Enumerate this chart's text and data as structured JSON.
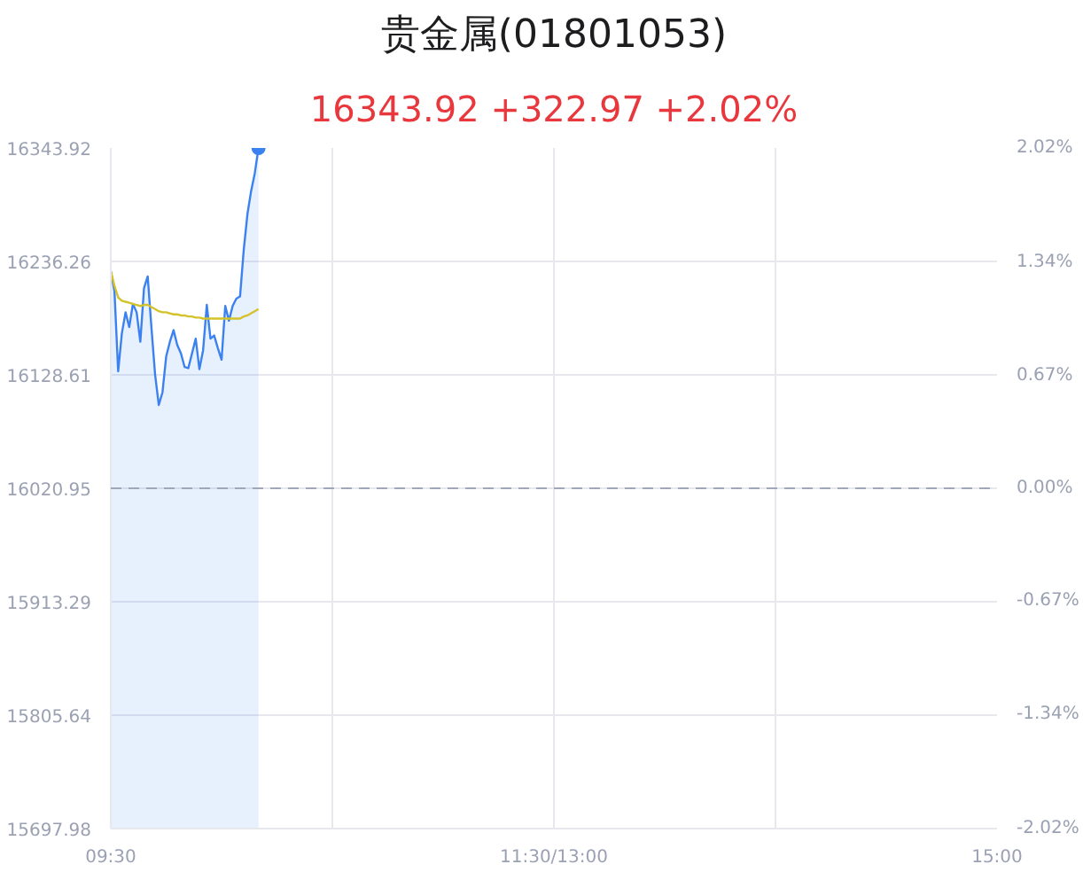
{
  "chart_data": {
    "type": "area",
    "title": "贵金属(01801053)",
    "subtitle": "16343.92 +322.97 +2.02%",
    "categories": [
      "09:30",
      null,
      null,
      null,
      null,
      null,
      null,
      null,
      null,
      null,
      null,
      null,
      null,
      null,
      null,
      null,
      null,
      null,
      null,
      null,
      null,
      null,
      null,
      null,
      null,
      null,
      null,
      null,
      null,
      null,
      null,
      null,
      null,
      null,
      null,
      null,
      null,
      null,
      null,
      null,
      null,
      null,
      null,
      null,
      null,
      null,
      null,
      null,
      null,
      null,
      null,
      null,
      null,
      null,
      null,
      null,
      null,
      null,
      null,
      null,
      null,
      null,
      null,
      null,
      null,
      null,
      null,
      null,
      null,
      null,
      null,
      null,
      null,
      null,
      null,
      null,
      null,
      null,
      null,
      null,
      null,
      null,
      null,
      null,
      null,
      null,
      null,
      null,
      null,
      null,
      null,
      null,
      null,
      null,
      null,
      null,
      null,
      null,
      null,
      null,
      null,
      null,
      null,
      null,
      null,
      null,
      null,
      null,
      null,
      null,
      null,
      null,
      null,
      null,
      null,
      null,
      null,
      null,
      null,
      null,
      "11:30/13:00",
      null,
      null,
      null,
      null,
      null,
      null,
      null,
      null,
      null,
      null,
      null,
      null,
      null,
      null,
      null,
      null,
      null,
      null,
      null,
      null,
      null,
      null,
      null,
      null,
      null,
      null,
      null,
      null,
      null,
      null,
      null,
      null,
      null,
      null,
      null,
      null,
      null,
      null,
      null,
      null,
      null,
      null,
      null,
      null,
      null,
      null,
      null,
      null,
      null,
      null,
      null,
      null,
      null,
      null,
      null,
      null,
      null,
      null,
      null,
      null,
      null,
      null,
      null,
      null,
      null,
      null,
      null,
      null,
      null,
      null,
      null,
      null,
      null,
      null,
      null,
      null,
      null,
      null,
      null,
      null,
      null,
      null,
      null,
      null,
      null,
      null,
      null,
      null,
      null,
      null,
      null,
      null,
      null,
      null,
      null,
      null,
      null,
      null,
      null,
      null,
      null,
      null,
      null,
      null,
      null,
      null,
      null,
      null,
      null,
      null,
      null,
      null,
      null,
      null,
      null,
      null,
      null,
      null,
      null,
      "15:00"
    ],
    "ylim": [
      15697.98,
      16343.92
    ],
    "yticks": [
      15697.98,
      15805.64,
      15913.29,
      16020.95,
      16128.61,
      16236.26,
      16343.92
    ],
    "y2lim": [
      -2.02,
      2.02
    ],
    "y2ticks": [
      {
        "value": -2.02,
        "label": "-2.02%"
      },
      {
        "value": -1.34,
        "label": "-1.34%"
      },
      {
        "value": -0.67,
        "label": "-0.67%"
      },
      {
        "value": 0,
        "label": "0.00%"
      },
      {
        "value": 0.67,
        "label": "0.67%"
      },
      {
        "value": 1.34,
        "label": "1.34%"
      },
      {
        "value": 2.02,
        "label": "2.02%"
      }
    ],
    "grid": true,
    "ref_lines": [
      {
        "axis": "y",
        "value": 16020.95,
        "color": "#a0a7b8",
        "line_style": "dashed"
      }
    ],
    "series": [
      {
        "color": "#3b82f0",
        "values": [
          16227,
          16208,
          16132,
          16168,
          16188,
          16174,
          16196,
          16188,
          16160,
          16211,
          16222,
          16174,
          16129,
          16100,
          16112,
          16146,
          16160,
          16171,
          16157,
          16149,
          16136,
          16135,
          16149,
          16163,
          16134,
          16152,
          16195,
          16163,
          16166,
          16154,
          16143,
          16194,
          16180,
          16194,
          16201,
          16203,
          16247,
          16281,
          16303,
          16320,
          16343.92,
          null,
          null,
          null,
          null,
          null,
          null,
          null,
          null,
          null,
          null,
          null,
          null,
          null,
          null,
          null,
          null,
          null,
          null,
          null,
          null,
          null,
          null,
          null,
          null,
          null,
          null,
          null,
          null,
          null,
          null,
          null,
          null,
          null,
          null,
          null,
          null,
          null,
          null,
          null,
          null,
          null,
          null,
          null,
          null,
          null,
          null,
          null,
          null,
          null,
          null,
          null,
          null,
          null,
          null,
          null,
          null,
          null,
          null,
          null,
          null,
          null,
          null,
          null,
          null,
          null,
          null,
          null,
          null,
          null,
          null,
          null,
          null,
          null,
          null,
          null,
          null,
          null,
          null,
          null,
          null,
          null,
          null,
          null,
          null,
          null,
          null,
          null,
          null,
          null,
          null,
          null,
          null,
          null,
          null,
          null,
          null,
          null,
          null,
          null,
          null,
          null,
          null,
          null,
          null,
          null,
          null,
          null,
          null,
          null,
          null,
          null,
          null,
          null,
          null,
          null,
          null,
          null,
          null,
          null,
          null,
          null,
          null,
          null,
          null,
          null,
          null,
          null,
          null,
          null,
          null,
          null,
          null,
          null,
          null,
          null,
          null,
          null,
          null,
          null,
          null,
          null,
          null,
          null,
          null,
          null,
          null,
          null,
          null,
          null,
          null,
          null,
          null,
          null,
          null,
          null,
          null,
          null,
          null,
          null,
          null,
          null,
          null,
          null,
          null,
          null,
          null,
          null,
          null,
          null,
          null,
          null,
          null,
          null,
          null,
          null,
          null,
          null,
          null,
          null,
          null,
          null,
          null,
          null,
          null,
          null,
          null,
          null,
          null,
          null,
          null,
          null,
          null,
          null,
          null,
          null,
          null,
          null,
          null,
          null,
          null
        ]
      },
      {
        "type": "line",
        "color": "#d4c22a",
        "values": [
          16227,
          16213,
          16202,
          16199,
          16198,
          16197,
          16196,
          16195,
          16194,
          16195,
          16195,
          16193,
          16191,
          16189,
          16188,
          16188,
          16187,
          16186,
          16186,
          16185,
          16185,
          16184,
          16184,
          16183,
          16183,
          16182,
          16182,
          16182,
          16182,
          16182,
          16182,
          16182,
          16182,
          16182,
          16182,
          16182,
          16184,
          16185,
          16187,
          16189,
          16191,
          null,
          null,
          null,
          null,
          null,
          null,
          null,
          null,
          null,
          null,
          null,
          null,
          null,
          null,
          null,
          null,
          null,
          null,
          null,
          null,
          null,
          null,
          null,
          null,
          null,
          null,
          null,
          null,
          null,
          null,
          null,
          null,
          null,
          null,
          null,
          null,
          null,
          null,
          null,
          null,
          null,
          null,
          null,
          null,
          null,
          null,
          null,
          null,
          null,
          null,
          null,
          null,
          null,
          null,
          null,
          null,
          null,
          null,
          null,
          null,
          null,
          null,
          null,
          null,
          null,
          null,
          null,
          null,
          null,
          null,
          null,
          null,
          null,
          null,
          null,
          null,
          null,
          null,
          null,
          null,
          null,
          null,
          null,
          null,
          null,
          null,
          null,
          null,
          null,
          null,
          null,
          null,
          null,
          null,
          null,
          null,
          null,
          null,
          null,
          null,
          null,
          null,
          null,
          null,
          null,
          null,
          null,
          null,
          null,
          null,
          null,
          null,
          null,
          null,
          null,
          null,
          null,
          null,
          null,
          null,
          null,
          null,
          null,
          null,
          null,
          null,
          null,
          null,
          null,
          null,
          null,
          null,
          null,
          null,
          null,
          null,
          null,
          null,
          null,
          null,
          null,
          null,
          null,
          null,
          null,
          null,
          null,
          null,
          null,
          null,
          null,
          null,
          null,
          null,
          null,
          null,
          null,
          null,
          null,
          null,
          null,
          null,
          null,
          null,
          null,
          null,
          null,
          null,
          null,
          null,
          null,
          null,
          null,
          null,
          null,
          null,
          null,
          null,
          null,
          null,
          null,
          null,
          null,
          null,
          null,
          null,
          null,
          null,
          null,
          null,
          null,
          null,
          null,
          null,
          null,
          null,
          null,
          null,
          null,
          null
        ]
      },
      {
        "type": "scatter",
        "color": "#3b82f0",
        "marker": "circle",
        "values": [
          null,
          null,
          null,
          null,
          null,
          null,
          null,
          null,
          null,
          null,
          null,
          null,
          null,
          null,
          null,
          null,
          null,
          null,
          null,
          null,
          null,
          null,
          null,
          null,
          null,
          null,
          null,
          null,
          null,
          null,
          null,
          null,
          null,
          null,
          null,
          null,
          null,
          null,
          null,
          null,
          16343.92,
          null,
          null,
          null,
          null,
          null,
          null,
          null,
          null,
          null,
          null,
          null,
          null,
          null,
          null,
          null,
          null,
          null,
          null,
          null,
          null,
          null,
          null,
          null,
          null,
          null,
          null,
          null,
          null,
          null,
          null,
          null,
          null,
          null,
          null,
          null,
          null,
          null,
          null,
          null,
          null,
          null,
          null,
          null,
          null,
          null,
          null,
          null,
          null,
          null,
          null,
          null,
          null,
          null,
          null,
          null,
          null,
          null,
          null,
          null,
          null,
          null,
          null,
          null,
          null,
          null,
          null,
          null,
          null,
          null,
          null,
          null,
          null,
          null,
          null,
          null,
          null,
          null,
          null,
          null,
          null,
          null,
          null,
          null,
          null,
          null,
          null,
          null,
          null,
          null,
          null,
          null,
          null,
          null,
          null,
          null,
          null,
          null,
          null,
          null,
          null,
          null,
          null,
          null,
          null,
          null,
          null,
          null,
          null,
          null,
          null,
          null,
          null,
          null,
          null,
          null,
          null,
          null,
          null,
          null,
          null,
          null,
          null,
          null,
          null,
          null,
          null,
          null,
          null,
          null,
          null,
          null,
          null,
          null,
          null,
          null,
          null,
          null,
          null,
          null,
          null,
          null,
          null,
          null,
          null,
          null,
          null,
          null,
          null,
          null,
          null,
          null,
          null,
          null,
          null,
          null,
          null,
          null,
          null,
          null,
          null,
          null,
          null,
          null,
          null,
          null,
          null,
          null,
          null,
          null,
          null,
          null,
          null,
          null,
          null,
          null,
          null,
          null,
          null,
          null,
          null,
          null,
          null,
          null,
          null,
          null,
          null,
          null,
          null,
          null,
          null,
          null,
          null,
          null,
          null,
          null,
          null,
          null,
          null,
          null,
          null
        ]
      }
    ]
  }
}
